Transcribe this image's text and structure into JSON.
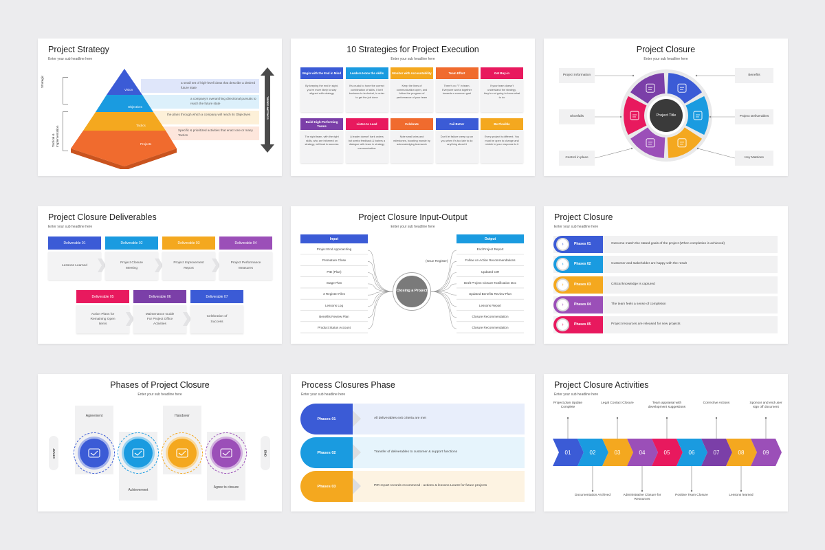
{
  "slide1": {
    "title": "Project Strategy",
    "subtitle": "Enter your sub headline here",
    "labels": {
      "strategic": "Strategic",
      "tactical": "Tactical & Implementation",
      "metrics": "TIERED METRICS"
    },
    "levels": [
      {
        "name": "Vision",
        "desc": "a small set of high-level ideas that describe a desired future state",
        "color": "#3b5bd6"
      },
      {
        "name": "Objectives",
        "desc": "a company's overarching directional pursuits to reach the future state",
        "color": "#1a9be0"
      },
      {
        "name": "Tactics",
        "desc": "the plans through which a company will reach its Objectives",
        "color": "#f4a81f"
      },
      {
        "name": "Projects",
        "desc": "Specific & prioritized activities that enact one or many Tactics",
        "color": "#f06b2e"
      }
    ]
  },
  "slide2": {
    "title": "10 Strategies for Project Execution",
    "subtitle": "Enter your sub headline here",
    "items": [
      {
        "head": "Begin with the End in Mind",
        "body": "By keeping the end in sight, you're more likely to stay aligned with strategy",
        "color": "#3b5bd6"
      },
      {
        "head": "Leaders Hone the skills",
        "body": "It's crucial to hone the correct combination of skills, it isn't business to technical, in order to get the job done",
        "color": "#1a9be0"
      },
      {
        "head": "Monitor with Accountability",
        "body": "Keep the lines of communication open, and follow the progress of performance of your team",
        "color": "#f4a81f"
      },
      {
        "head": "Team Effort",
        "body": "There's no \"I\" in team. Everyone works together towards a common goal",
        "color": "#f06b2e"
      },
      {
        "head": "Get Buy-in",
        "body": "If your team doesn't understand the strategy, they're not going to know what to do",
        "color": "#e8195e"
      },
      {
        "head": "Build High-Performing Teams",
        "body": "The right team, with the right skills, who are informed on strategy, will lead to success",
        "color": "#7b3fa8"
      },
      {
        "head": "Listen to Lead",
        "body": "A leader doesn't bark orders but seeks feedback & fosters a dialogue with team in strategy communication",
        "color": "#e8195e"
      },
      {
        "head": "Celebrate",
        "body": "Note small wins and milestones, boosting morale by acknowledging teamwork",
        "color": "#f06b2e"
      },
      {
        "head": "Fail Better",
        "body": "Don't let failure creep up on you when it's too late to do anything about it",
        "color": "#3b5bd6"
      },
      {
        "head": "Be Flexible",
        "body": "Every project is different. You must be open to change and nimble in your response to it",
        "color": "#f4a81f"
      }
    ]
  },
  "slide3": {
    "title": "Project Closure",
    "subtitle": "Enter your sub headline here",
    "center": "Project Title",
    "left_labels": [
      "Project Information",
      "Shortfalls",
      "Control in place"
    ],
    "right_labels": [
      "Benefits",
      "Project Deliverables",
      "Key Matrices"
    ],
    "colors": [
      "#3b5bd6",
      "#1a9be0",
      "#f4a81f",
      "#9b4fb8",
      "#e8195e",
      "#7b3fa8"
    ]
  },
  "slide4": {
    "title": "Project Closure Deliverables",
    "subtitle": "Enter your sub headline here",
    "row1": [
      {
        "head": "Deliverable 01",
        "body": "Lessons Learned",
        "color": "#3b5bd6"
      },
      {
        "head": "Deliverable 02",
        "body": "Project Closure Meeting",
        "color": "#1a9be0"
      },
      {
        "head": "Deliverable 03",
        "body": "Project Improvement Report",
        "color": "#f4a81f"
      },
      {
        "head": "Deliverable 04",
        "body": "Project Performance Measures",
        "color": "#9b4fb8"
      }
    ],
    "row2": [
      {
        "head": "Deliverable 05",
        "body": "Action Plans for Remaining Open Items",
        "color": "#e8195e"
      },
      {
        "head": "Deliverable 06",
        "body": "Maintenance Guide For Project Office Activities",
        "color": "#7b3fa8"
      },
      {
        "head": "Deliverable 07",
        "body": "Celebration of Success",
        "color": "#3b5bd6"
      }
    ]
  },
  "slide5": {
    "title": "Project Closure Input-Output",
    "subtitle": "Enter your sub headline here",
    "input_head": "Input",
    "output_head": "Output",
    "center": "Closing a Project",
    "issue": "(Issue Register)",
    "inputs": [
      "Project End Approaching",
      "Premature Close",
      "PID (Plan)",
      "Stage Plan",
      "3 Register Files",
      "Lessons Log",
      "Benefits Review Plan",
      "Product Status Account"
    ],
    "outputs": [
      "End Project Report",
      "Follow on Action Recommendations",
      "Updated CIR",
      "Draft Project Closure Notification Doc",
      "Updated Benefits Review Plan",
      "Lessons Report",
      "Closure Recommendation",
      "Closure Recommendation"
    ]
  },
  "slide6": {
    "title": "Project Closure",
    "subtitle": "Enter your sub headline here",
    "phases": [
      {
        "label": "Phases 01",
        "text": "Outcome match the stated goals of the project (When completion is achieved)",
        "color": "#3b5bd6"
      },
      {
        "label": "Phases 02",
        "text": "Customer and stakeholder are happy with the result",
        "color": "#1a9be0"
      },
      {
        "label": "Phases 03",
        "text": "Critical knowledge is captured",
        "color": "#f4a81f"
      },
      {
        "label": "Phases 04",
        "text": "The team feels a sense of completion",
        "color": "#9b4fb8"
      },
      {
        "label": "Phases 05",
        "text": "Project resources are released for new projects",
        "color": "#e8195e"
      }
    ]
  },
  "slide7": {
    "title": "Phases of Project Closure",
    "subtitle": "Enter your sub headline here",
    "start": "START",
    "end": "END",
    "steps": [
      {
        "label": "Agreement",
        "pos": "top",
        "color": "#3b5bd6"
      },
      {
        "label": "Achievement",
        "pos": "bottom",
        "color": "#1a9be0"
      },
      {
        "label": "Handover",
        "pos": "top",
        "color": "#f4a81f"
      },
      {
        "label": "Agree to closure",
        "pos": "bottom",
        "color": "#9b4fb8"
      }
    ]
  },
  "slide8": {
    "title": "Process Closures Phase",
    "subtitle": "Enter your sub headline here",
    "phases": [
      {
        "label": "Phases 01",
        "text": "All deliverables exit criteria are met",
        "color": "#3b5bd6",
        "bg": "#e8eefb"
      },
      {
        "label": "Phases 02",
        "text": "Transfer of deliverables to customer & support functions",
        "color": "#1a9be0",
        "bg": "#e6f4fc"
      },
      {
        "label": "Phases 03",
        "text": "PIR report records recommend - actions & lessons Learnt for future projects",
        "color": "#f4a81f",
        "bg": "#fdf3e2"
      }
    ]
  },
  "slide9": {
    "title": "Project Closure Activities",
    "subtitle": "Enter your sub headline here",
    "steps": [
      {
        "num": "01",
        "color": "#3b5bd6",
        "label": "Project plan Update Complete",
        "pos": "top"
      },
      {
        "num": "02",
        "color": "#1a9be0",
        "label": "Documentation Archived",
        "pos": "bottom"
      },
      {
        "num": "03",
        "color": "#f4a81f",
        "label": "Legal Contact Closure",
        "pos": "top"
      },
      {
        "num": "04",
        "color": "#9b4fb8",
        "label": "Administrative Closure for Resources",
        "pos": "bottom"
      },
      {
        "num": "05",
        "color": "#e8195e",
        "label": "Team appraisal with development suggestions",
        "pos": "top"
      },
      {
        "num": "06",
        "color": "#1a9be0",
        "label": "Positive Team Closure",
        "pos": "bottom"
      },
      {
        "num": "07",
        "color": "#7b3fa8",
        "label": "Corrective Actions",
        "pos": "top"
      },
      {
        "num": "08",
        "color": "#f4a81f",
        "label": "Lessons learned",
        "pos": "bottom"
      },
      {
        "num": "09",
        "color": "#9b4fb8",
        "label": "Sponsor and end user sign off document",
        "pos": "top"
      }
    ]
  }
}
